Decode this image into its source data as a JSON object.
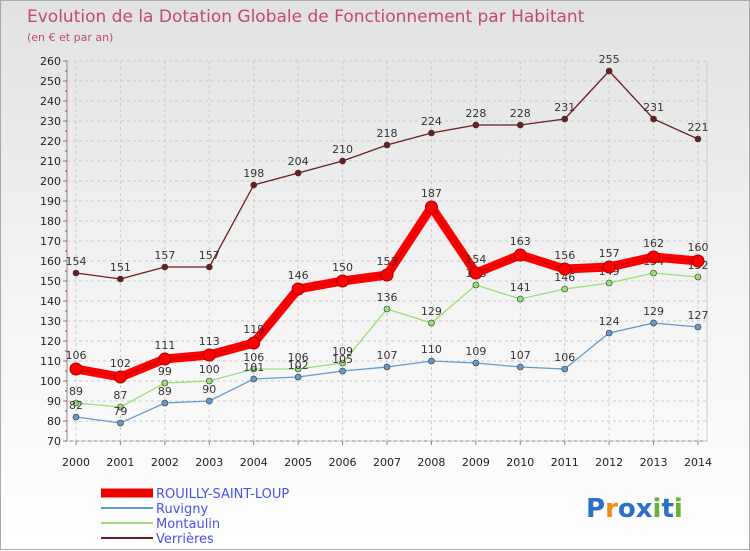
{
  "chart_data": {
    "type": "line",
    "title": "Evolution de la Dotation Globale de Fonctionnement par Habitant",
    "subtitle": "(en € et par an)",
    "xlabel": "",
    "ylabel": "",
    "ylim": [
      70,
      260
    ],
    "ytick_step": 10,
    "grid": true,
    "x": [
      "2000",
      "2001",
      "2002",
      "2003",
      "2004",
      "2005",
      "2006",
      "2007",
      "2008",
      "2009",
      "2010",
      "2011",
      "2012",
      "2013",
      "2014"
    ],
    "series": [
      {
        "name": "Verrières",
        "color": "#6b1e1e",
        "values": [
          154,
          151,
          157,
          157,
          198,
          204,
          210,
          218,
          224,
          228,
          228,
          231,
          255,
          231,
          221
        ]
      },
      {
        "name": "Montaulin",
        "color": "#99dd77",
        "values": [
          89,
          87,
          99,
          100,
          106,
          106,
          109,
          136,
          129,
          148,
          141,
          146,
          149,
          154,
          152
        ]
      },
      {
        "name": "Ruvigny",
        "color": "#6699cc",
        "values": [
          82,
          79,
          89,
          90,
          101,
          102,
          105,
          107,
          110,
          109,
          107,
          106,
          124,
          129,
          127
        ]
      },
      {
        "name": "ROUILLY-SAINT-LOUP",
        "color": "#ee0000",
        "values": [
          106,
          102,
          111,
          113,
          119,
          146,
          150,
          153,
          187,
          154,
          163,
          156,
          157,
          162,
          160
        ]
      }
    ],
    "legend": [
      "ROUILLY-SAINT-LOUP",
      "Ruvigny",
      "Montaulin",
      "Verrières"
    ],
    "legend_placement": "bottom-left"
  },
  "logo": {
    "text": "Proxiti",
    "letters": [
      "P",
      "r",
      "o",
      "x",
      "i",
      "t",
      "i"
    ],
    "colors": [
      "#2a6fc9",
      "#f08a1c",
      "#2a6fc9",
      "#2a6fc9",
      "#65b32e",
      "#2a6fc9",
      "#65b32e"
    ]
  }
}
